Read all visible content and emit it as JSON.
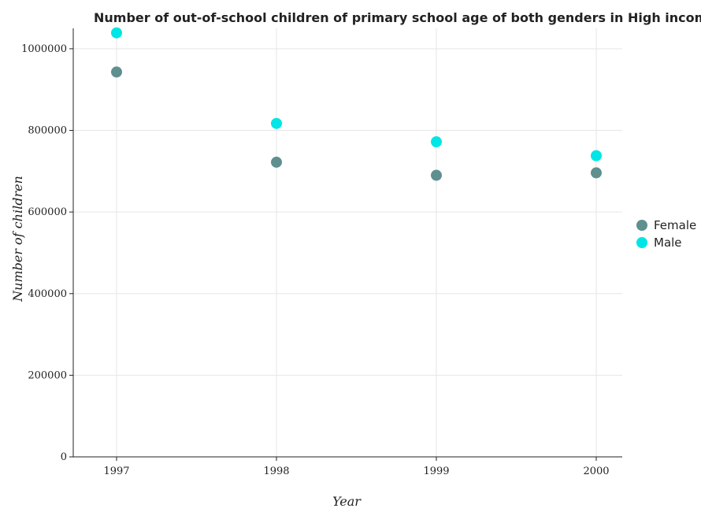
{
  "chart_data": {
    "type": "scatter",
    "title": "Number of out-of-school children of primary school age of both genders in High income: OECD",
    "xlabel": "Year",
    "ylabel": "Number of children",
    "categories": [
      "1997",
      "1998",
      "1999",
      "2000"
    ],
    "ylim": [
      0,
      1050000
    ],
    "yticks": [
      0,
      200000,
      400000,
      600000,
      800000,
      1000000
    ],
    "ytick_labels": [
      "0",
      "200000",
      "400000",
      "600000",
      "800000",
      "1000000"
    ],
    "grid": true,
    "legend_position": "right",
    "series": [
      {
        "name": "Female",
        "color": "#5f8f8f",
        "values": [
          943000,
          722000,
          690000,
          696000
        ]
      },
      {
        "name": "Male",
        "color": "#00e5e5",
        "values": [
          1039000,
          817000,
          772000,
          738000
        ]
      }
    ]
  }
}
